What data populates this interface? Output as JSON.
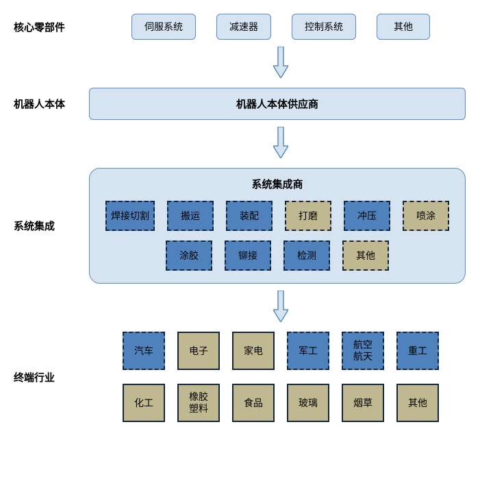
{
  "colors": {
    "lightBlueFill": "#d6e4f2",
    "lightBlueBorder": "#5b8bbf",
    "midBlueFill": "#4f81bd",
    "darkBorder": "#13253c",
    "khakiFill": "#c0b890",
    "khakiBorder": "#13253c",
    "arrowFill": "#d6e4f2",
    "arrowBorder": "#5b8bbf",
    "text": "#000000"
  },
  "row1": {
    "label": "核心零部件",
    "items": [
      "伺服系统",
      "减速器",
      "控制系统",
      "其他"
    ]
  },
  "row2": {
    "label": "机器人本体",
    "title": "机器人本体供应商"
  },
  "row3": {
    "label": "系统集成",
    "title": "系统集成商",
    "items": [
      {
        "text": "焊接切割",
        "style": "blue"
      },
      {
        "text": "搬运",
        "style": "blue"
      },
      {
        "text": "装配",
        "style": "blue"
      },
      {
        "text": "打磨",
        "style": "khaki"
      },
      {
        "text": "冲压",
        "style": "blue"
      },
      {
        "text": "喷涂",
        "style": "khaki"
      },
      {
        "text": "涂胶",
        "style": "blue"
      },
      {
        "text": "铆接",
        "style": "blue"
      },
      {
        "text": "检测",
        "style": "blue"
      },
      {
        "text": "其他",
        "style": "khaki"
      }
    ]
  },
  "row4": {
    "label": "终端行业",
    "rowA": [
      {
        "text": "汽车",
        "style": "blue-dashed"
      },
      {
        "text": "电子",
        "style": "khaki-solid"
      },
      {
        "text": "家电",
        "style": "khaki-solid"
      },
      {
        "text": "军工",
        "style": "blue-dashed"
      },
      {
        "text": "航空\n航天",
        "style": "blue-dashed"
      },
      {
        "text": "重工",
        "style": "blue-dashed"
      }
    ],
    "rowB": [
      {
        "text": "化工",
        "style": "khaki-solid"
      },
      {
        "text": "橡胶\n塑料",
        "style": "khaki-solid"
      },
      {
        "text": "食品",
        "style": "khaki-solid"
      },
      {
        "text": "玻璃",
        "style": "khaki-solid"
      },
      {
        "text": "烟草",
        "style": "khaki-solid"
      },
      {
        "text": "其他",
        "style": "khaki-solid"
      }
    ]
  }
}
